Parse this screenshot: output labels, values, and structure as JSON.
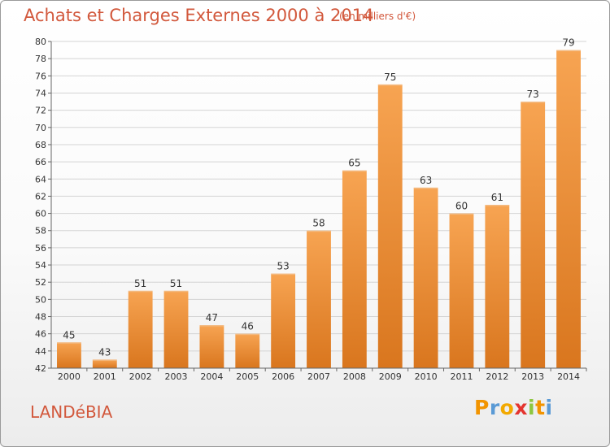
{
  "chart_data": {
    "type": "bar",
    "title": "Achats et Charges Externes 2000 à 2014",
    "subtitle": "(en milliers d'€)",
    "categories": [
      "2000",
      "2001",
      "2002",
      "2003",
      "2004",
      "2005",
      "2006",
      "2007",
      "2008",
      "2009",
      "2010",
      "2011",
      "2012",
      "2013",
      "2014"
    ],
    "values": [
      45,
      43,
      51,
      51,
      47,
      46,
      53,
      58,
      65,
      75,
      63,
      60,
      61,
      73,
      79
    ],
    "ylim": [
      42,
      80
    ],
    "yticks": [
      42,
      44,
      46,
      48,
      50,
      52,
      54,
      56,
      58,
      60,
      62,
      64,
      66,
      68,
      70,
      72,
      74,
      76,
      78,
      80
    ],
    "grid": true,
    "colors": {
      "bar_light": "#f7a452",
      "bar_dark": "#d9761e",
      "title": "#d2583c"
    }
  },
  "footer": {
    "commune": "LANDéBIA",
    "logo": {
      "letters": [
        "P",
        "r",
        "o",
        "x",
        "i",
        "t",
        "i"
      ],
      "colors": [
        "#f29400",
        "#5a9ad5",
        "#f2a900",
        "#e4342f",
        "#8dc63f",
        "#f29400",
        "#5a9ad5"
      ]
    }
  }
}
